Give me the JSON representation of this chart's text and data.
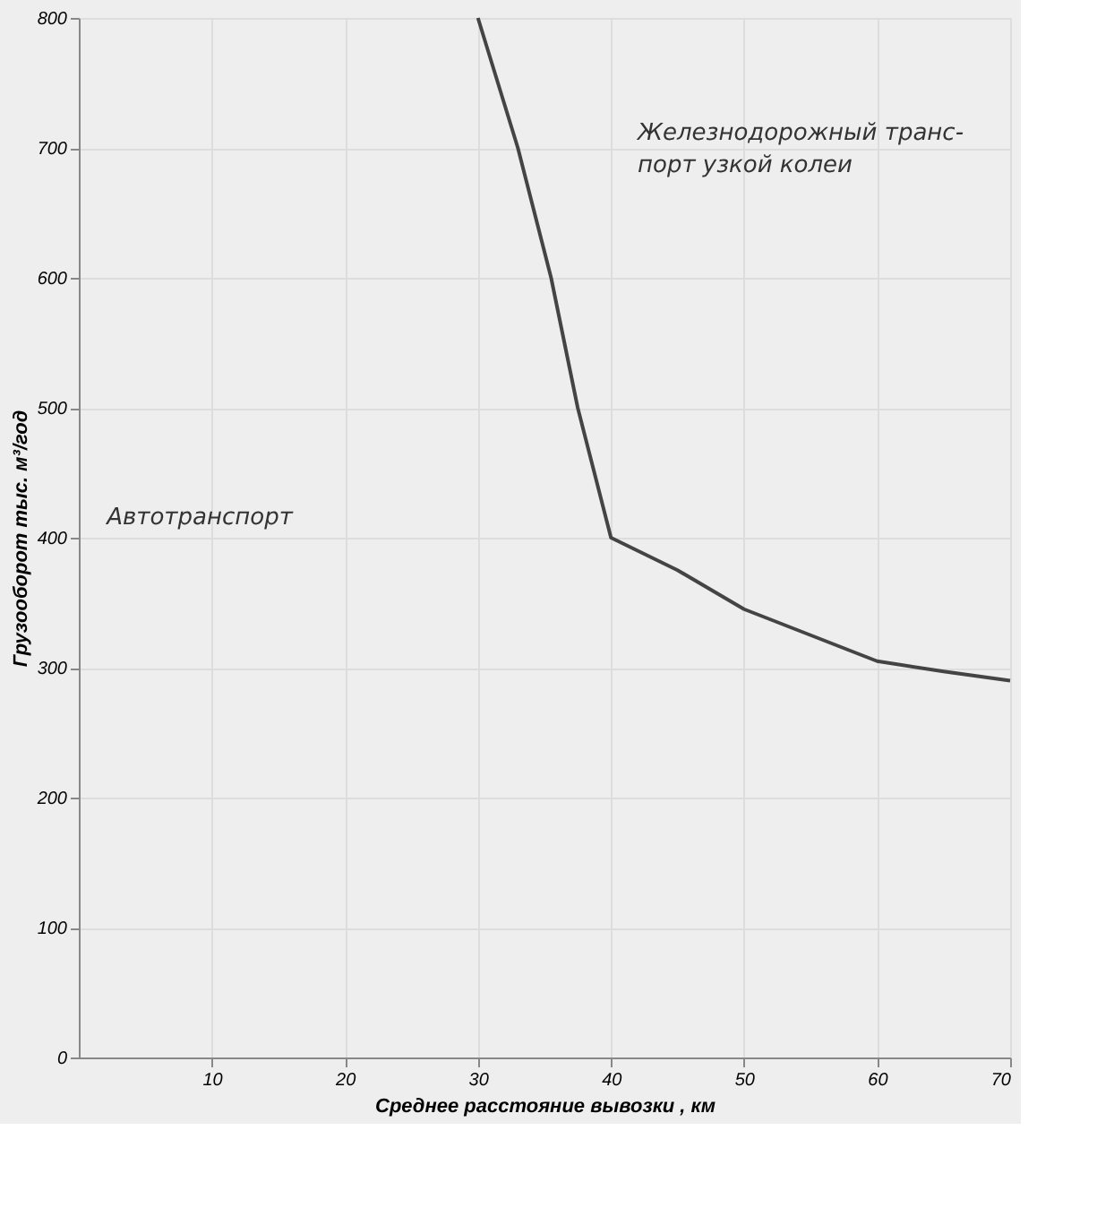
{
  "chart_data": {
    "type": "line",
    "xlabel": "Среднее расстояние вывозки , км",
    "ylabel": "Грузооборот тыс. м³/год",
    "annotations": [
      "Железнодорожный транс-\nпорт узкой колеи",
      "Автотранспорт"
    ],
    "x": [
      30,
      33,
      35.5,
      37.5,
      40,
      45,
      50,
      55,
      60,
      65,
      70
    ],
    "series": [
      {
        "color": "#444444",
        "values": [
          800,
          700,
          600,
          500,
          400,
          375,
          345,
          325,
          305,
          297,
          290
        ]
      }
    ],
    "xlim": [
      0,
      70
    ],
    "xticks": [
      10,
      20,
      30,
      40,
      50,
      60,
      70
    ],
    "ylim": [
      0,
      800
    ],
    "yticks": [
      0,
      100,
      200,
      300,
      400,
      500,
      600,
      700,
      800
    ],
    "grid": true,
    "marker": "none",
    "line_style": "solid"
  }
}
